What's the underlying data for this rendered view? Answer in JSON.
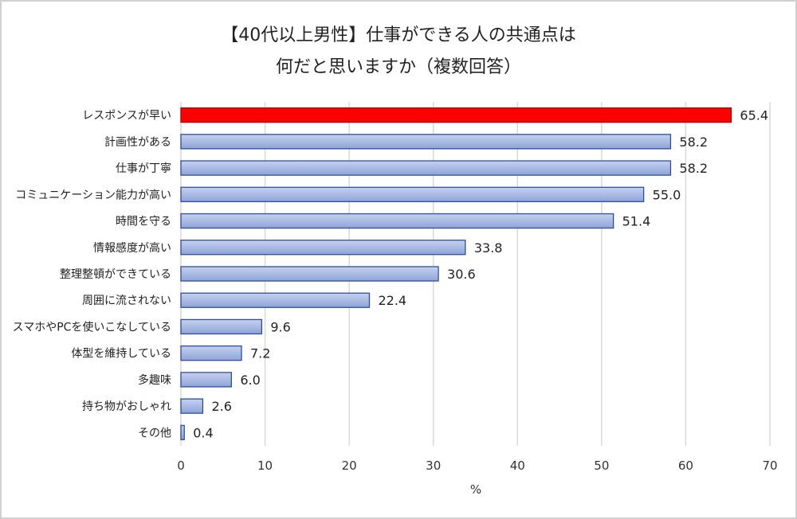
{
  "chart_data": {
    "type": "bar",
    "orientation": "horizontal",
    "title_line1": "【40代以上男性】仕事ができる人の共通点は",
    "title_line2": "何だと思いますか（複数回答）",
    "xlabel": "%",
    "ylabel": "",
    "xlim": [
      0,
      70
    ],
    "xticks": [
      0,
      10,
      20,
      30,
      40,
      50,
      60,
      70
    ],
    "grid": true,
    "legend": "none",
    "categories": [
      "レスポンスが早い",
      "計画性がある",
      "仕事が丁寧",
      "コミュニケーション能力が高い",
      "時間を守る",
      "情報感度が高い",
      "整理整頓ができている",
      "周囲に流されない",
      "スマホやPCを使いこなしている",
      "体型を維持している",
      "多趣味",
      "持ち物がおしゃれ",
      "その他"
    ],
    "values": [
      65.4,
      58.2,
      58.2,
      55.0,
      51.4,
      33.8,
      30.6,
      22.4,
      9.6,
      7.2,
      6.0,
      2.6,
      0.4
    ],
    "data_labels": [
      "65.4",
      "58.2",
      "58.2",
      "55.0",
      "51.4",
      "33.8",
      "30.6",
      "22.4",
      "9.6",
      "7.2",
      "6.0",
      "2.6",
      "0.4"
    ],
    "colors": {
      "highlight": "#ff0000",
      "bar_light": "#c5d1ee",
      "bar_dark": "#8ea4d8",
      "bar_border": "#2f4f9a",
      "grid": "#d9d9d9"
    },
    "highlight_index": 0
  }
}
